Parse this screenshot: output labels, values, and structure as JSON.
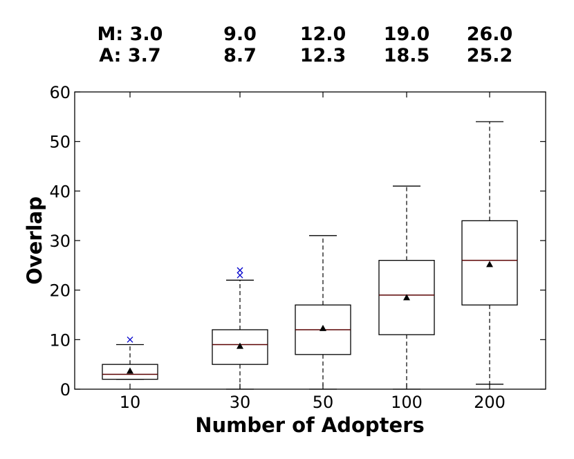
{
  "chart_data": {
    "type": "boxplot",
    "xlabel": "Number of Adopters",
    "ylabel": "Overlap",
    "ylim": [
      0,
      60
    ],
    "yticks": [
      0,
      10,
      20,
      30,
      40,
      50,
      60
    ],
    "categories": [
      "10",
      "30",
      "50",
      "100",
      "200"
    ],
    "annotation_prefixes": {
      "median": "M: ",
      "average": "A: "
    },
    "boxes": [
      {
        "label": "10",
        "median_label": "3.0",
        "average_label": "3.7",
        "whisker_low": 2,
        "q1": 2,
        "median": 3,
        "q3": 5,
        "whisker_high": 9,
        "mean": 3.7,
        "outliers": [
          10
        ]
      },
      {
        "label": "30",
        "median_label": "9.0",
        "average_label": "8.7",
        "whisker_low": 0,
        "q1": 5,
        "median": 9,
        "q3": 12,
        "whisker_high": 22,
        "mean": 8.7,
        "outliers": [
          23,
          24
        ]
      },
      {
        "label": "50",
        "median_label": "12.0",
        "average_label": "12.3",
        "whisker_low": 0,
        "q1": 7,
        "median": 12,
        "q3": 17,
        "whisker_high": 31,
        "mean": 12.3,
        "outliers": []
      },
      {
        "label": "100",
        "median_label": "19.0",
        "average_label": "18.5",
        "whisker_low": 0,
        "q1": 11,
        "median": 19,
        "q3": 26,
        "whisker_high": 41,
        "mean": 18.5,
        "outliers": []
      },
      {
        "label": "200",
        "median_label": "26.0",
        "average_label": "25.2",
        "whisker_low": 1,
        "q1": 17,
        "median": 26,
        "q3": 34,
        "whisker_high": 54,
        "mean": 25.2,
        "outliers": []
      }
    ],
    "colors": {
      "box": "#000000",
      "median": "#5a0000",
      "outlier": "#0000cc",
      "mean": "#000000"
    }
  }
}
